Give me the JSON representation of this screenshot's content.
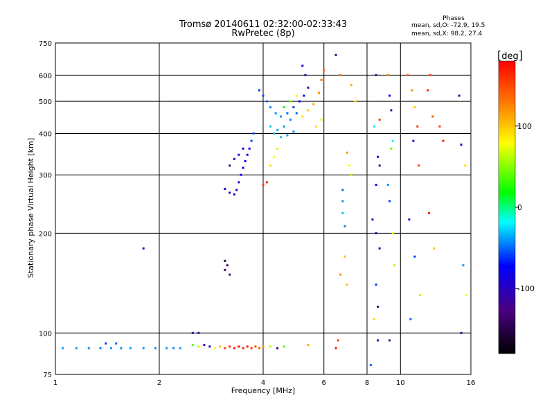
{
  "chart_data": {
    "type": "scatter",
    "title": "Tromsø 20140611 02:32:00-02:33:43",
    "subtitle": "RwPretec (8p)",
    "xlabel": "Frequency [MHz]",
    "ylabel": "Stationary phase Virtual Height [km]",
    "x_scale": "log",
    "y_scale": "log",
    "xlim": [
      1,
      16
    ],
    "ylim": [
      75,
      750
    ],
    "x_ticks": [
      1,
      2,
      4,
      6,
      8,
      10,
      16
    ],
    "x_tick_labels": [
      "1",
      "2",
      "4",
      "6",
      "8",
      "10",
      "16"
    ],
    "y_ticks": [
      75,
      100,
      200,
      300,
      400,
      500,
      600,
      750
    ],
    "y_tick_labels": [
      "75",
      "100",
      "200",
      "300",
      "400",
      "500",
      "600",
      "750"
    ],
    "grid": true,
    "stats": {
      "header": "Phases",
      "line_o": "mean, sd,O: -72.9, 19.5",
      "line_x": "mean, sd,X:  98.2, 27.4"
    },
    "colorbar": {
      "label": "deg",
      "range": [
        -180,
        180
      ],
      "ticks": [
        -100,
        0,
        100
      ],
      "tick_labels": [
        "-100",
        "0",
        "100"
      ]
    },
    "points_note": "phase in deg per point",
    "points": [
      [
        1.05,
        90,
        -40
      ],
      [
        1.15,
        90,
        -40
      ],
      [
        1.25,
        90,
        -42
      ],
      [
        1.35,
        90,
        -45
      ],
      [
        1.45,
        90,
        -40
      ],
      [
        1.55,
        90,
        -42
      ],
      [
        1.65,
        90,
        -38
      ],
      [
        1.8,
        90,
        -40
      ],
      [
        1.95,
        90,
        -42
      ],
      [
        2.1,
        90,
        -40
      ],
      [
        2.2,
        90,
        -45
      ],
      [
        2.3,
        90,
        -40
      ],
      [
        1.4,
        93,
        -60
      ],
      [
        1.5,
        93,
        -50
      ],
      [
        2.5,
        92,
        40
      ],
      [
        2.6,
        91,
        60
      ],
      [
        2.7,
        92,
        -120
      ],
      [
        2.8,
        91,
        -100
      ],
      [
        2.9,
        90,
        80
      ],
      [
        3.0,
        91,
        100
      ],
      [
        3.1,
        90,
        150
      ],
      [
        3.2,
        91,
        160
      ],
      [
        3.3,
        90,
        170
      ],
      [
        3.4,
        91,
        175
      ],
      [
        3.5,
        90,
        165
      ],
      [
        3.6,
        91,
        170
      ],
      [
        3.7,
        90,
        160
      ],
      [
        3.8,
        91,
        150
      ],
      [
        3.9,
        90,
        140
      ],
      [
        4.0,
        91,
        120
      ],
      [
        4.2,
        91,
        60
      ],
      [
        4.4,
        90,
        -130
      ],
      [
        4.6,
        91,
        40
      ],
      [
        5.4,
        92,
        110
      ],
      [
        2.5,
        100,
        -120
      ],
      [
        2.6,
        100,
        -100
      ],
      [
        1.8,
        180,
        -100
      ],
      [
        3.1,
        155,
        -140
      ],
      [
        3.15,
        160,
        -130
      ],
      [
        3.1,
        165,
        -150
      ],
      [
        3.2,
        150,
        -120
      ],
      [
        3.1,
        272,
        -100
      ],
      [
        3.2,
        265,
        -95
      ],
      [
        3.3,
        262,
        -90
      ],
      [
        3.35,
        270,
        -95
      ],
      [
        3.4,
        285,
        -90
      ],
      [
        3.45,
        300,
        -85
      ],
      [
        3.5,
        315,
        -80
      ],
      [
        3.55,
        330,
        -75
      ],
      [
        3.6,
        345,
        -80
      ],
      [
        3.65,
        360,
        -70
      ],
      [
        3.2,
        320,
        -110
      ],
      [
        3.3,
        335,
        -105
      ],
      [
        3.4,
        345,
        -100
      ],
      [
        3.5,
        360,
        -95
      ],
      [
        3.7,
        380,
        -60
      ],
      [
        3.75,
        400,
        -55
      ],
      [
        3.9,
        540,
        -60
      ],
      [
        4.0,
        520,
        -55
      ],
      [
        4.1,
        500,
        -50
      ],
      [
        4.2,
        480,
        -45
      ],
      [
        4.35,
        460,
        -40
      ],
      [
        4.5,
        450,
        -40
      ],
      [
        4.7,
        460,
        -50
      ],
      [
        4.9,
        480,
        -60
      ],
      [
        5.1,
        500,
        -70
      ],
      [
        5.25,
        520,
        -80
      ],
      [
        5.4,
        550,
        -100
      ],
      [
        5.3,
        600,
        -110
      ],
      [
        5.2,
        640,
        -90
      ],
      [
        4.2,
        420,
        -30
      ],
      [
        4.4,
        410,
        -35
      ],
      [
        4.6,
        420,
        -40
      ],
      [
        4.8,
        440,
        -45
      ],
      [
        5.0,
        460,
        -50
      ],
      [
        4.3,
        400,
        -30
      ],
      [
        4.5,
        390,
        -30
      ],
      [
        4.7,
        395,
        -40
      ],
      [
        4.9,
        405,
        -45
      ],
      [
        4.6,
        480,
        20
      ],
      [
        4.8,
        500,
        40
      ],
      [
        5.0,
        520,
        80
      ],
      [
        5.2,
        450,
        90
      ],
      [
        5.4,
        470,
        100
      ],
      [
        5.6,
        490,
        110
      ],
      [
        5.8,
        530,
        120
      ],
      [
        5.9,
        580,
        130
      ],
      [
        6.0,
        620,
        140
      ],
      [
        5.7,
        420,
        90
      ],
      [
        5.9,
        440,
        85
      ],
      [
        4.0,
        280,
        150
      ],
      [
        4.1,
        285,
        160
      ],
      [
        4.2,
        320,
        90
      ],
      [
        4.3,
        340,
        80
      ],
      [
        4.4,
        360,
        70
      ],
      [
        6.5,
        90,
        170
      ],
      [
        6.6,
        95,
        150
      ],
      [
        6.7,
        150,
        120
      ],
      [
        6.8,
        250,
        -40
      ],
      [
        6.8,
        230,
        -30
      ],
      [
        6.9,
        210,
        -45
      ],
      [
        6.8,
        270,
        -50
      ],
      [
        7.0,
        350,
        120
      ],
      [
        7.1,
        320,
        80
      ],
      [
        7.2,
        300,
        60
      ],
      [
        6.9,
        170,
        100
      ],
      [
        7.0,
        140,
        100
      ],
      [
        7.2,
        560,
        110
      ],
      [
        7.4,
        500,
        90
      ],
      [
        6.5,
        690,
        -120
      ],
      [
        6.7,
        600,
        130
      ],
      [
        8.5,
        600,
        -110
      ],
      [
        8.4,
        420,
        -20
      ],
      [
        8.6,
        340,
        -100
      ],
      [
        8.7,
        320,
        -110
      ],
      [
        8.5,
        280,
        -90
      ],
      [
        8.3,
        220,
        -110
      ],
      [
        8.5,
        200,
        -105
      ],
      [
        8.7,
        180,
        -100
      ],
      [
        8.5,
        140,
        -60
      ],
      [
        8.6,
        120,
        -130
      ],
      [
        8.4,
        110,
        90
      ],
      [
        8.6,
        95,
        -120
      ],
      [
        8.2,
        80,
        -50
      ],
      [
        8.7,
        440,
        160
      ],
      [
        9.2,
        600,
        120
      ],
      [
        9.3,
        520,
        -70
      ],
      [
        9.4,
        470,
        -130
      ],
      [
        9.5,
        380,
        -20
      ],
      [
        9.4,
        360,
        40
      ],
      [
        9.2,
        280,
        -40
      ],
      [
        9.3,
        250,
        -60
      ],
      [
        9.5,
        200,
        80
      ],
      [
        9.6,
        160,
        60
      ],
      [
        9.3,
        95,
        -130
      ],
      [
        10.5,
        600,
        140
      ],
      [
        10.8,
        540,
        120
      ],
      [
        11.0,
        480,
        100
      ],
      [
        11.2,
        420,
        160
      ],
      [
        10.9,
        380,
        -90
      ],
      [
        11.3,
        320,
        150
      ],
      [
        10.6,
        220,
        -100
      ],
      [
        11.0,
        170,
        -60
      ],
      [
        11.4,
        130,
        60
      ],
      [
        10.7,
        110,
        -50
      ],
      [
        12.2,
        600,
        150
      ],
      [
        12.0,
        540,
        170
      ],
      [
        12.4,
        450,
        140
      ],
      [
        12.1,
        230,
        170
      ],
      [
        12.5,
        180,
        100
      ],
      [
        13.0,
        420,
        150
      ],
      [
        13.3,
        380,
        170
      ],
      [
        14.8,
        520,
        -110
      ],
      [
        15.0,
        370,
        -90
      ],
      [
        15.4,
        320,
        90
      ],
      [
        15.2,
        160,
        -40
      ],
      [
        15.0,
        100,
        -110
      ],
      [
        15.5,
        130,
        80
      ]
    ]
  }
}
